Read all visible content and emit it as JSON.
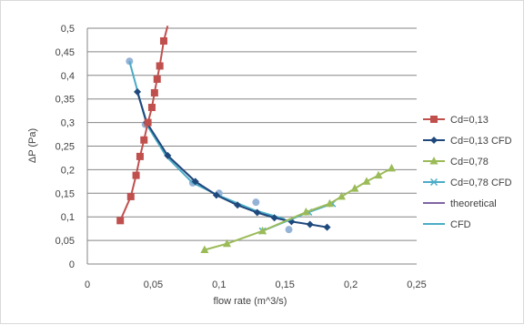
{
  "chart_data": {
    "type": "scatter",
    "title": "",
    "xlabel": "flow rate (m^3/s)",
    "ylabel": "ΔP (Pa)",
    "xlim": [
      0,
      0.25
    ],
    "ylim": [
      0,
      0.5
    ],
    "x_ticks": [
      "0",
      "0,05",
      "0,1",
      "0,15",
      "0,2",
      "0,25"
    ],
    "y_ticks": [
      "0",
      "0,05",
      "0,1",
      "0,15",
      "0,2",
      "0,25",
      "0,3",
      "0,35",
      "0,4",
      "0,45",
      "0,5"
    ],
    "grid": "horizontal",
    "legend_position": "right",
    "series": [
      {
        "name": "Cd=0,13",
        "color": "#c0504d",
        "marker": "square",
        "line": true,
        "points": [
          [
            0.025,
            0.092
          ],
          [
            0.033,
            0.143
          ],
          [
            0.037,
            0.188
          ],
          [
            0.04,
            0.228
          ],
          [
            0.043,
            0.263
          ],
          [
            0.046,
            0.3
          ],
          [
            0.049,
            0.332
          ],
          [
            0.051,
            0.363
          ],
          [
            0.053,
            0.392
          ],
          [
            0.055,
            0.42
          ],
          [
            0.058,
            0.473
          ],
          [
            0.061,
            0.505
          ]
        ]
      },
      {
        "name": "Cd=0,13 CFD",
        "color": "#1f497d",
        "marker": "diamond",
        "line": true,
        "points": [
          [
            0.038,
            0.365
          ],
          [
            0.045,
            0.3
          ],
          [
            0.061,
            0.23
          ],
          [
            0.082,
            0.175
          ],
          [
            0.098,
            0.146
          ],
          [
            0.114,
            0.125
          ],
          [
            0.129,
            0.109
          ],
          [
            0.142,
            0.098
          ],
          [
            0.155,
            0.09
          ],
          [
            0.169,
            0.084
          ],
          [
            0.182,
            0.078
          ]
        ]
      },
      {
        "name": "Cd=0,78",
        "color": "#9bbb59",
        "marker": "triangle",
        "line": true,
        "points": [
          [
            0.089,
            0.03
          ],
          [
            0.106,
            0.043
          ],
          [
            0.133,
            0.07
          ],
          [
            0.166,
            0.11
          ],
          [
            0.184,
            0.128
          ],
          [
            0.193,
            0.143
          ],
          [
            0.203,
            0.16
          ],
          [
            0.212,
            0.175
          ],
          [
            0.221,
            0.188
          ],
          [
            0.231,
            0.203
          ]
        ]
      },
      {
        "name": "Cd=0,78 CFD",
        "color": "#4bacc6",
        "marker": "x",
        "line": true,
        "points": [
          [
            0.133,
            0.07
          ],
          [
            0.168,
            0.11
          ],
          [
            0.186,
            0.128
          ]
        ]
      },
      {
        "name": "theoretical",
        "color": "#8064a2",
        "marker": "none",
        "line": true,
        "points": [
          [
            0.038,
            0.365
          ],
          [
            0.045,
            0.3
          ],
          [
            0.061,
            0.23
          ],
          [
            0.082,
            0.175
          ],
          [
            0.098,
            0.146
          ],
          [
            0.114,
            0.125
          ],
          [
            0.129,
            0.109
          ],
          [
            0.142,
            0.098
          ],
          [
            0.155,
            0.09
          ]
        ]
      },
      {
        "name": "CFD",
        "color": "#4bacc6",
        "marker": "none",
        "line": true,
        "points": [
          [
            0.032,
            0.43
          ],
          [
            0.045,
            0.296
          ],
          [
            0.06,
            0.228
          ],
          [
            0.08,
            0.172
          ],
          [
            0.1,
            0.145
          ],
          [
            0.126,
            0.115
          ],
          [
            0.15,
            0.095
          ]
        ]
      }
    ],
    "extra_points": {
      "color": "#95b3d7",
      "points": [
        [
          0.032,
          0.43
        ],
        [
          0.044,
          0.296
        ],
        [
          0.08,
          0.172
        ],
        [
          0.1,
          0.15
        ],
        [
          0.128,
          0.131
        ],
        [
          0.153,
          0.073
        ]
      ]
    }
  }
}
